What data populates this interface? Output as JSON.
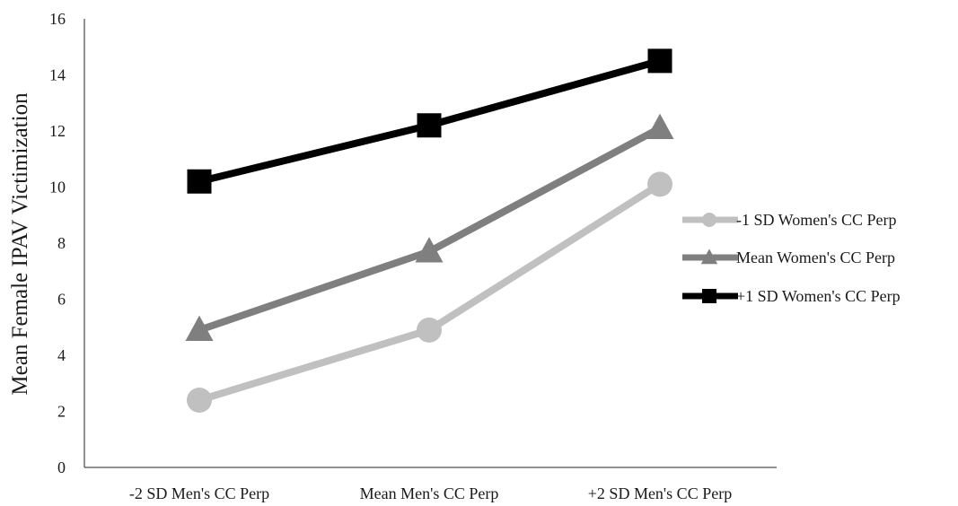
{
  "chart_data": {
    "type": "line",
    "title": "",
    "xlabel": "",
    "ylabel": "Mean Female IPAV Victimization",
    "categories": [
      "-2 SD Men's CC Perp",
      "Mean Men's CC Perp",
      "+2 SD Men's CC Perp"
    ],
    "ylim": [
      0,
      16
    ],
    "yticks": [
      0,
      2,
      4,
      6,
      8,
      10,
      12,
      14,
      16
    ],
    "grid": false,
    "legend_position": "right",
    "series": [
      {
        "name": "-1 SD Women's CC Perp",
        "values": [
          2.4,
          4.9,
          10.1
        ],
        "color": "#c0c0c0",
        "marker": "circle"
      },
      {
        "name": "Mean Women's CC Perp",
        "values": [
          4.9,
          7.7,
          12.1
        ],
        "color": "#7f7f7f",
        "marker": "triangle"
      },
      {
        "name": "+1 SD Women's CC Perp",
        "values": [
          10.2,
          12.2,
          14.5
        ],
        "color": "#000000",
        "marker": "square"
      }
    ]
  }
}
